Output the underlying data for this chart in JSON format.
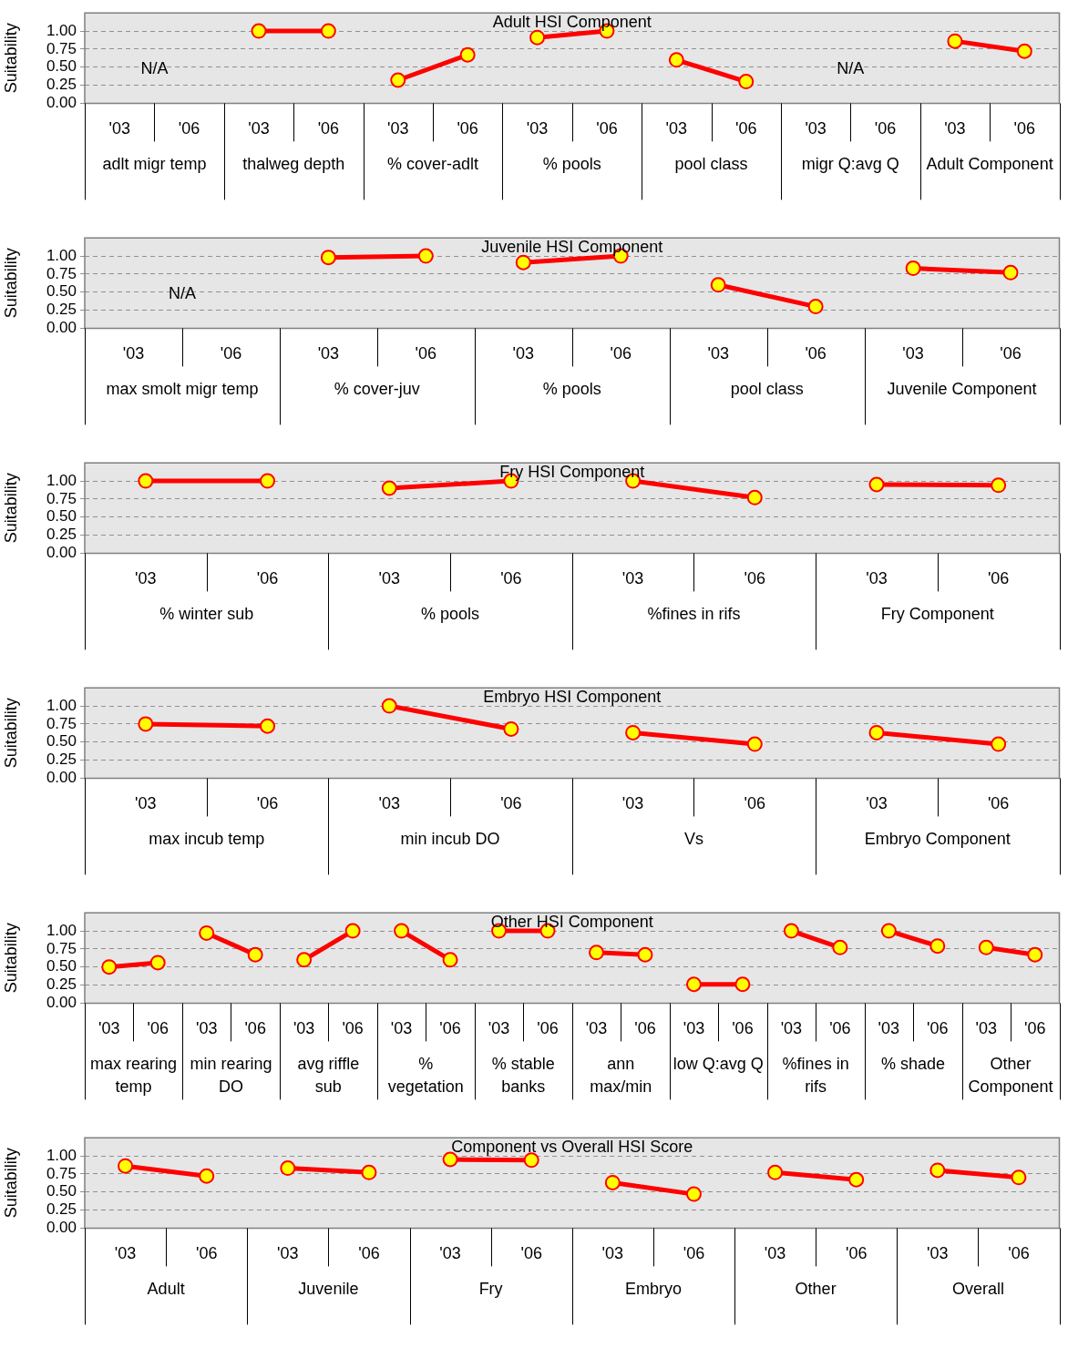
{
  "chart_data": [
    {
      "type": "line",
      "title": "Adult HSI Component",
      "ylabel": "Suitability",
      "categories": [
        "'03",
        "'06",
        "'03",
        "'06",
        "'03",
        "'06",
        "'03",
        "'06",
        "'03",
        "'06",
        "'03",
        "'06",
        "'03",
        "'06"
      ],
      "ylim": [
        0,
        1.25
      ],
      "yticks": [
        {
          "value": 0,
          "label": "0.00"
        },
        {
          "value": 0.25,
          "label": "0.25"
        },
        {
          "value": 0.5,
          "label": "0.50"
        },
        {
          "value": 0.75,
          "label": "0.75"
        },
        {
          "value": 1,
          "label": "1.00"
        }
      ],
      "grid": "y",
      "marker": "circle",
      "line_style": "solid",
      "annotations": [
        "adlt migr temp",
        "thalweg depth",
        "% cover-adlt",
        "% pools",
        "pool class",
        "migr Q:avg Q",
        "Adult Component",
        "N/A",
        "N/A"
      ],
      "series": [
        {
          "color": "#ff0000",
          "values": [
            null,
            null,
            null,
            null,
            null,
            null,
            null,
            null,
            null,
            null,
            null,
            null,
            null,
            null
          ]
        },
        {
          "color": "#ff0000",
          "values": [
            null,
            null,
            1,
            1,
            null,
            null,
            null,
            null,
            null,
            null,
            null,
            null,
            null,
            null
          ]
        },
        {
          "color": "#ff0000",
          "values": [
            null,
            null,
            null,
            null,
            0.32,
            0.67,
            null,
            null,
            null,
            null,
            null,
            null,
            null,
            null
          ]
        },
        {
          "color": "#ff0000",
          "values": [
            null,
            null,
            null,
            null,
            null,
            null,
            0.91,
            1,
            null,
            null,
            null,
            null,
            null,
            null
          ]
        },
        {
          "color": "#ff0000",
          "values": [
            null,
            null,
            null,
            null,
            null,
            null,
            null,
            null,
            0.6,
            0.3,
            null,
            null,
            null,
            null
          ]
        },
        {
          "color": "#ff0000",
          "values": [
            null,
            null,
            null,
            null,
            null,
            null,
            null,
            null,
            null,
            null,
            null,
            null,
            null,
            null
          ]
        },
        {
          "color": "#ff0000",
          "values": [
            null,
            null,
            null,
            null,
            null,
            null,
            null,
            null,
            null,
            null,
            null,
            null,
            0.86,
            0.72
          ]
        }
      ]
    },
    {
      "type": "line",
      "title": "Juvenile HSI Component",
      "ylabel": "Suitability",
      "categories": [
        "'03",
        "'06",
        "'03",
        "'06",
        "'03",
        "'06",
        "'03",
        "'06",
        "'03",
        "'06"
      ],
      "ylim": [
        0,
        1.25
      ],
      "yticks": [
        {
          "value": 0,
          "label": "0.00"
        },
        {
          "value": 0.25,
          "label": "0.25"
        },
        {
          "value": 0.5,
          "label": "0.50"
        },
        {
          "value": 0.75,
          "label": "0.75"
        },
        {
          "value": 1,
          "label": "1.00"
        }
      ],
      "grid": "y",
      "marker": "circle",
      "line_style": "solid",
      "annotations": [
        "max smolt migr temp",
        "% cover-juv",
        "% pools",
        "pool class",
        "Juvenile Component",
        "N/A"
      ],
      "series": [
        {
          "color": "#ff0000",
          "values": [
            null,
            null,
            null,
            null,
            null,
            null,
            null,
            null,
            null,
            null
          ]
        },
        {
          "color": "#ff0000",
          "values": [
            null,
            null,
            0.98,
            1,
            null,
            null,
            null,
            null,
            null,
            null
          ]
        },
        {
          "color": "#ff0000",
          "values": [
            null,
            null,
            null,
            null,
            0.91,
            1,
            null,
            null,
            null,
            null
          ]
        },
        {
          "color": "#ff0000",
          "values": [
            null,
            null,
            null,
            null,
            null,
            null,
            0.6,
            0.3,
            null,
            null
          ]
        },
        {
          "color": "#ff0000",
          "values": [
            null,
            null,
            null,
            null,
            null,
            null,
            null,
            null,
            0.83,
            0.77
          ]
        }
      ]
    },
    {
      "type": "line",
      "title": "Fry HSI Component",
      "ylabel": "Suitability",
      "categories": [
        "'03",
        "'06",
        "'03",
        "'06",
        "'03",
        "'06",
        "'03",
        "'06"
      ],
      "ylim": [
        0,
        1.25
      ],
      "yticks": [
        {
          "value": 0,
          "label": "0.00"
        },
        {
          "value": 0.25,
          "label": "0.25"
        },
        {
          "value": 0.5,
          "label": "0.50"
        },
        {
          "value": 0.75,
          "label": "0.75"
        },
        {
          "value": 1,
          "label": "1.00"
        }
      ],
      "grid": "y",
      "marker": "circle",
      "line_style": "solid",
      "annotations": [
        "% winter sub",
        "% pools",
        "%fines in rifs",
        "Fry Component"
      ],
      "series": [
        {
          "color": "#ff0000",
          "values": [
            1,
            1,
            null,
            null,
            null,
            null,
            null,
            null
          ]
        },
        {
          "color": "#ff0000",
          "values": [
            null,
            null,
            0.9,
            1,
            null,
            null,
            null,
            null
          ]
        },
        {
          "color": "#ff0000",
          "values": [
            null,
            null,
            null,
            null,
            1,
            0.77,
            null,
            null
          ]
        },
        {
          "color": "#ff0000",
          "values": [
            null,
            null,
            null,
            null,
            null,
            null,
            0.95,
            0.94
          ]
        }
      ]
    },
    {
      "type": "line",
      "title": "Embryo HSI Component",
      "ylabel": "Suitability",
      "categories": [
        "'03",
        "'06",
        "'03",
        "'06",
        "'03",
        "'06",
        "'03",
        "'06"
      ],
      "ylim": [
        0,
        1.25
      ],
      "yticks": [
        {
          "value": 0,
          "label": "0.00"
        },
        {
          "value": 0.25,
          "label": "0.25"
        },
        {
          "value": 0.5,
          "label": "0.50"
        },
        {
          "value": 0.75,
          "label": "0.75"
        },
        {
          "value": 1,
          "label": "1.00"
        }
      ],
      "grid": "y",
      "marker": "circle",
      "line_style": "solid",
      "annotations": [
        "max incub temp",
        "min incub DO",
        "Vs",
        "Embryo Component"
      ],
      "series": [
        {
          "color": "#ff0000",
          "values": [
            0.75,
            0.72,
            null,
            null,
            null,
            null,
            null,
            null
          ]
        },
        {
          "color": "#ff0000",
          "values": [
            null,
            null,
            1,
            0.68,
            null,
            null,
            null,
            null
          ]
        },
        {
          "color": "#ff0000",
          "values": [
            null,
            null,
            null,
            null,
            0.63,
            0.47,
            null,
            null
          ]
        },
        {
          "color": "#ff0000",
          "values": [
            null,
            null,
            null,
            null,
            null,
            null,
            0.63,
            0.47
          ]
        }
      ]
    },
    {
      "type": "line",
      "title": "Other HSI Component",
      "ylabel": "Suitability",
      "categories": [
        "'03",
        "'06",
        "'03",
        "'06",
        "'03",
        "'06",
        "'03",
        "'06",
        "'03",
        "'06",
        "'03",
        "'06",
        "'03",
        "'06",
        "'03",
        "'06",
        "'03",
        "'06",
        "'03",
        "'06"
      ],
      "ylim": [
        0,
        1.25
      ],
      "yticks": [
        {
          "value": 0,
          "label": "0.00"
        },
        {
          "value": 0.25,
          "label": "0.25"
        },
        {
          "value": 0.5,
          "label": "0.50"
        },
        {
          "value": 0.75,
          "label": "0.75"
        },
        {
          "value": 1,
          "label": "1.00"
        }
      ],
      "grid": "y",
      "marker": "circle",
      "line_style": "solid",
      "annotations": [
        "max rearing temp",
        "min rearing DO",
        "avg riffle sub",
        "% vegetation",
        "% stable banks",
        "ann max/min",
        "low Q:avg Q",
        "%fines in rifs",
        "% shade",
        "Other Component"
      ],
      "series": [
        {
          "color": "#ff0000",
          "values": [
            0.5,
            0.56,
            null,
            null,
            null,
            null,
            null,
            null,
            null,
            null,
            null,
            null,
            null,
            null,
            null,
            null,
            null,
            null,
            null,
            null
          ]
        },
        {
          "color": "#ff0000",
          "values": [
            null,
            null,
            0.97,
            0.67,
            null,
            null,
            null,
            null,
            null,
            null,
            null,
            null,
            null,
            null,
            null,
            null,
            null,
            null,
            null,
            null
          ]
        },
        {
          "color": "#ff0000",
          "values": [
            null,
            null,
            null,
            null,
            0.6,
            1,
            null,
            null,
            null,
            null,
            null,
            null,
            null,
            null,
            null,
            null,
            null,
            null,
            null,
            null
          ]
        },
        {
          "color": "#ff0000",
          "values": [
            null,
            null,
            null,
            null,
            null,
            null,
            1,
            0.6,
            null,
            null,
            null,
            null,
            null,
            null,
            null,
            null,
            null,
            null,
            null,
            null
          ]
        },
        {
          "color": "#ff0000",
          "values": [
            null,
            null,
            null,
            null,
            null,
            null,
            null,
            null,
            1,
            1,
            null,
            null,
            null,
            null,
            null,
            null,
            null,
            null,
            null,
            null
          ]
        },
        {
          "color": "#ff0000",
          "values": [
            null,
            null,
            null,
            null,
            null,
            null,
            null,
            null,
            null,
            null,
            0.7,
            0.67,
            null,
            null,
            null,
            null,
            null,
            null,
            null,
            null
          ]
        },
        {
          "color": "#ff0000",
          "values": [
            null,
            null,
            null,
            null,
            null,
            null,
            null,
            null,
            null,
            null,
            null,
            null,
            0.26,
            0.26,
            null,
            null,
            null,
            null,
            null,
            null
          ]
        },
        {
          "color": "#ff0000",
          "values": [
            null,
            null,
            null,
            null,
            null,
            null,
            null,
            null,
            null,
            null,
            null,
            null,
            null,
            null,
            1,
            0.77,
            null,
            null,
            null,
            null
          ]
        },
        {
          "color": "#ff0000",
          "values": [
            null,
            null,
            null,
            null,
            null,
            null,
            null,
            null,
            null,
            null,
            null,
            null,
            null,
            null,
            null,
            null,
            1,
            0.79,
            null,
            null
          ]
        },
        {
          "color": "#ff0000",
          "values": [
            null,
            null,
            null,
            null,
            null,
            null,
            null,
            null,
            null,
            null,
            null,
            null,
            null,
            null,
            null,
            null,
            null,
            null,
            0.77,
            0.67
          ]
        }
      ]
    },
    {
      "type": "line",
      "title": "Component vs Overall HSI Score",
      "ylabel": "Suitability",
      "categories": [
        "'03",
        "'06",
        "'03",
        "'06",
        "'03",
        "'06",
        "'03",
        "'06",
        "'03",
        "'06",
        "'03",
        "'06"
      ],
      "ylim": [
        0,
        1.25
      ],
      "yticks": [
        {
          "value": 0,
          "label": "0.00"
        },
        {
          "value": 0.25,
          "label": "0.25"
        },
        {
          "value": 0.5,
          "label": "0.50"
        },
        {
          "value": 0.75,
          "label": "0.75"
        },
        {
          "value": 1,
          "label": "1.00"
        }
      ],
      "grid": "y",
      "marker": "circle",
      "line_style": "solid",
      "annotations": [
        "Adult",
        "Juvenile",
        "Fry",
        "Embryo",
        "Other",
        "Overall"
      ],
      "series": [
        {
          "color": "#ff0000",
          "values": [
            0.86,
            0.72,
            null,
            null,
            null,
            null,
            null,
            null,
            null,
            null,
            null,
            null
          ]
        },
        {
          "color": "#ff0000",
          "values": [
            null,
            null,
            0.83,
            0.77,
            null,
            null,
            null,
            null,
            null,
            null,
            null,
            null
          ]
        },
        {
          "color": "#ff0000",
          "values": [
            null,
            null,
            null,
            null,
            0.95,
            0.94,
            null,
            null,
            null,
            null,
            null,
            null
          ]
        },
        {
          "color": "#ff0000",
          "values": [
            null,
            null,
            null,
            null,
            null,
            null,
            0.63,
            0.47,
            null,
            null,
            null,
            null
          ]
        },
        {
          "color": "#ff0000",
          "values": [
            null,
            null,
            null,
            null,
            null,
            null,
            null,
            null,
            0.77,
            0.67,
            null,
            null
          ]
        },
        {
          "color": "#ff0000",
          "values": [
            null,
            null,
            null,
            null,
            null,
            null,
            null,
            null,
            null,
            null,
            0.8,
            0.7
          ]
        }
      ]
    }
  ]
}
